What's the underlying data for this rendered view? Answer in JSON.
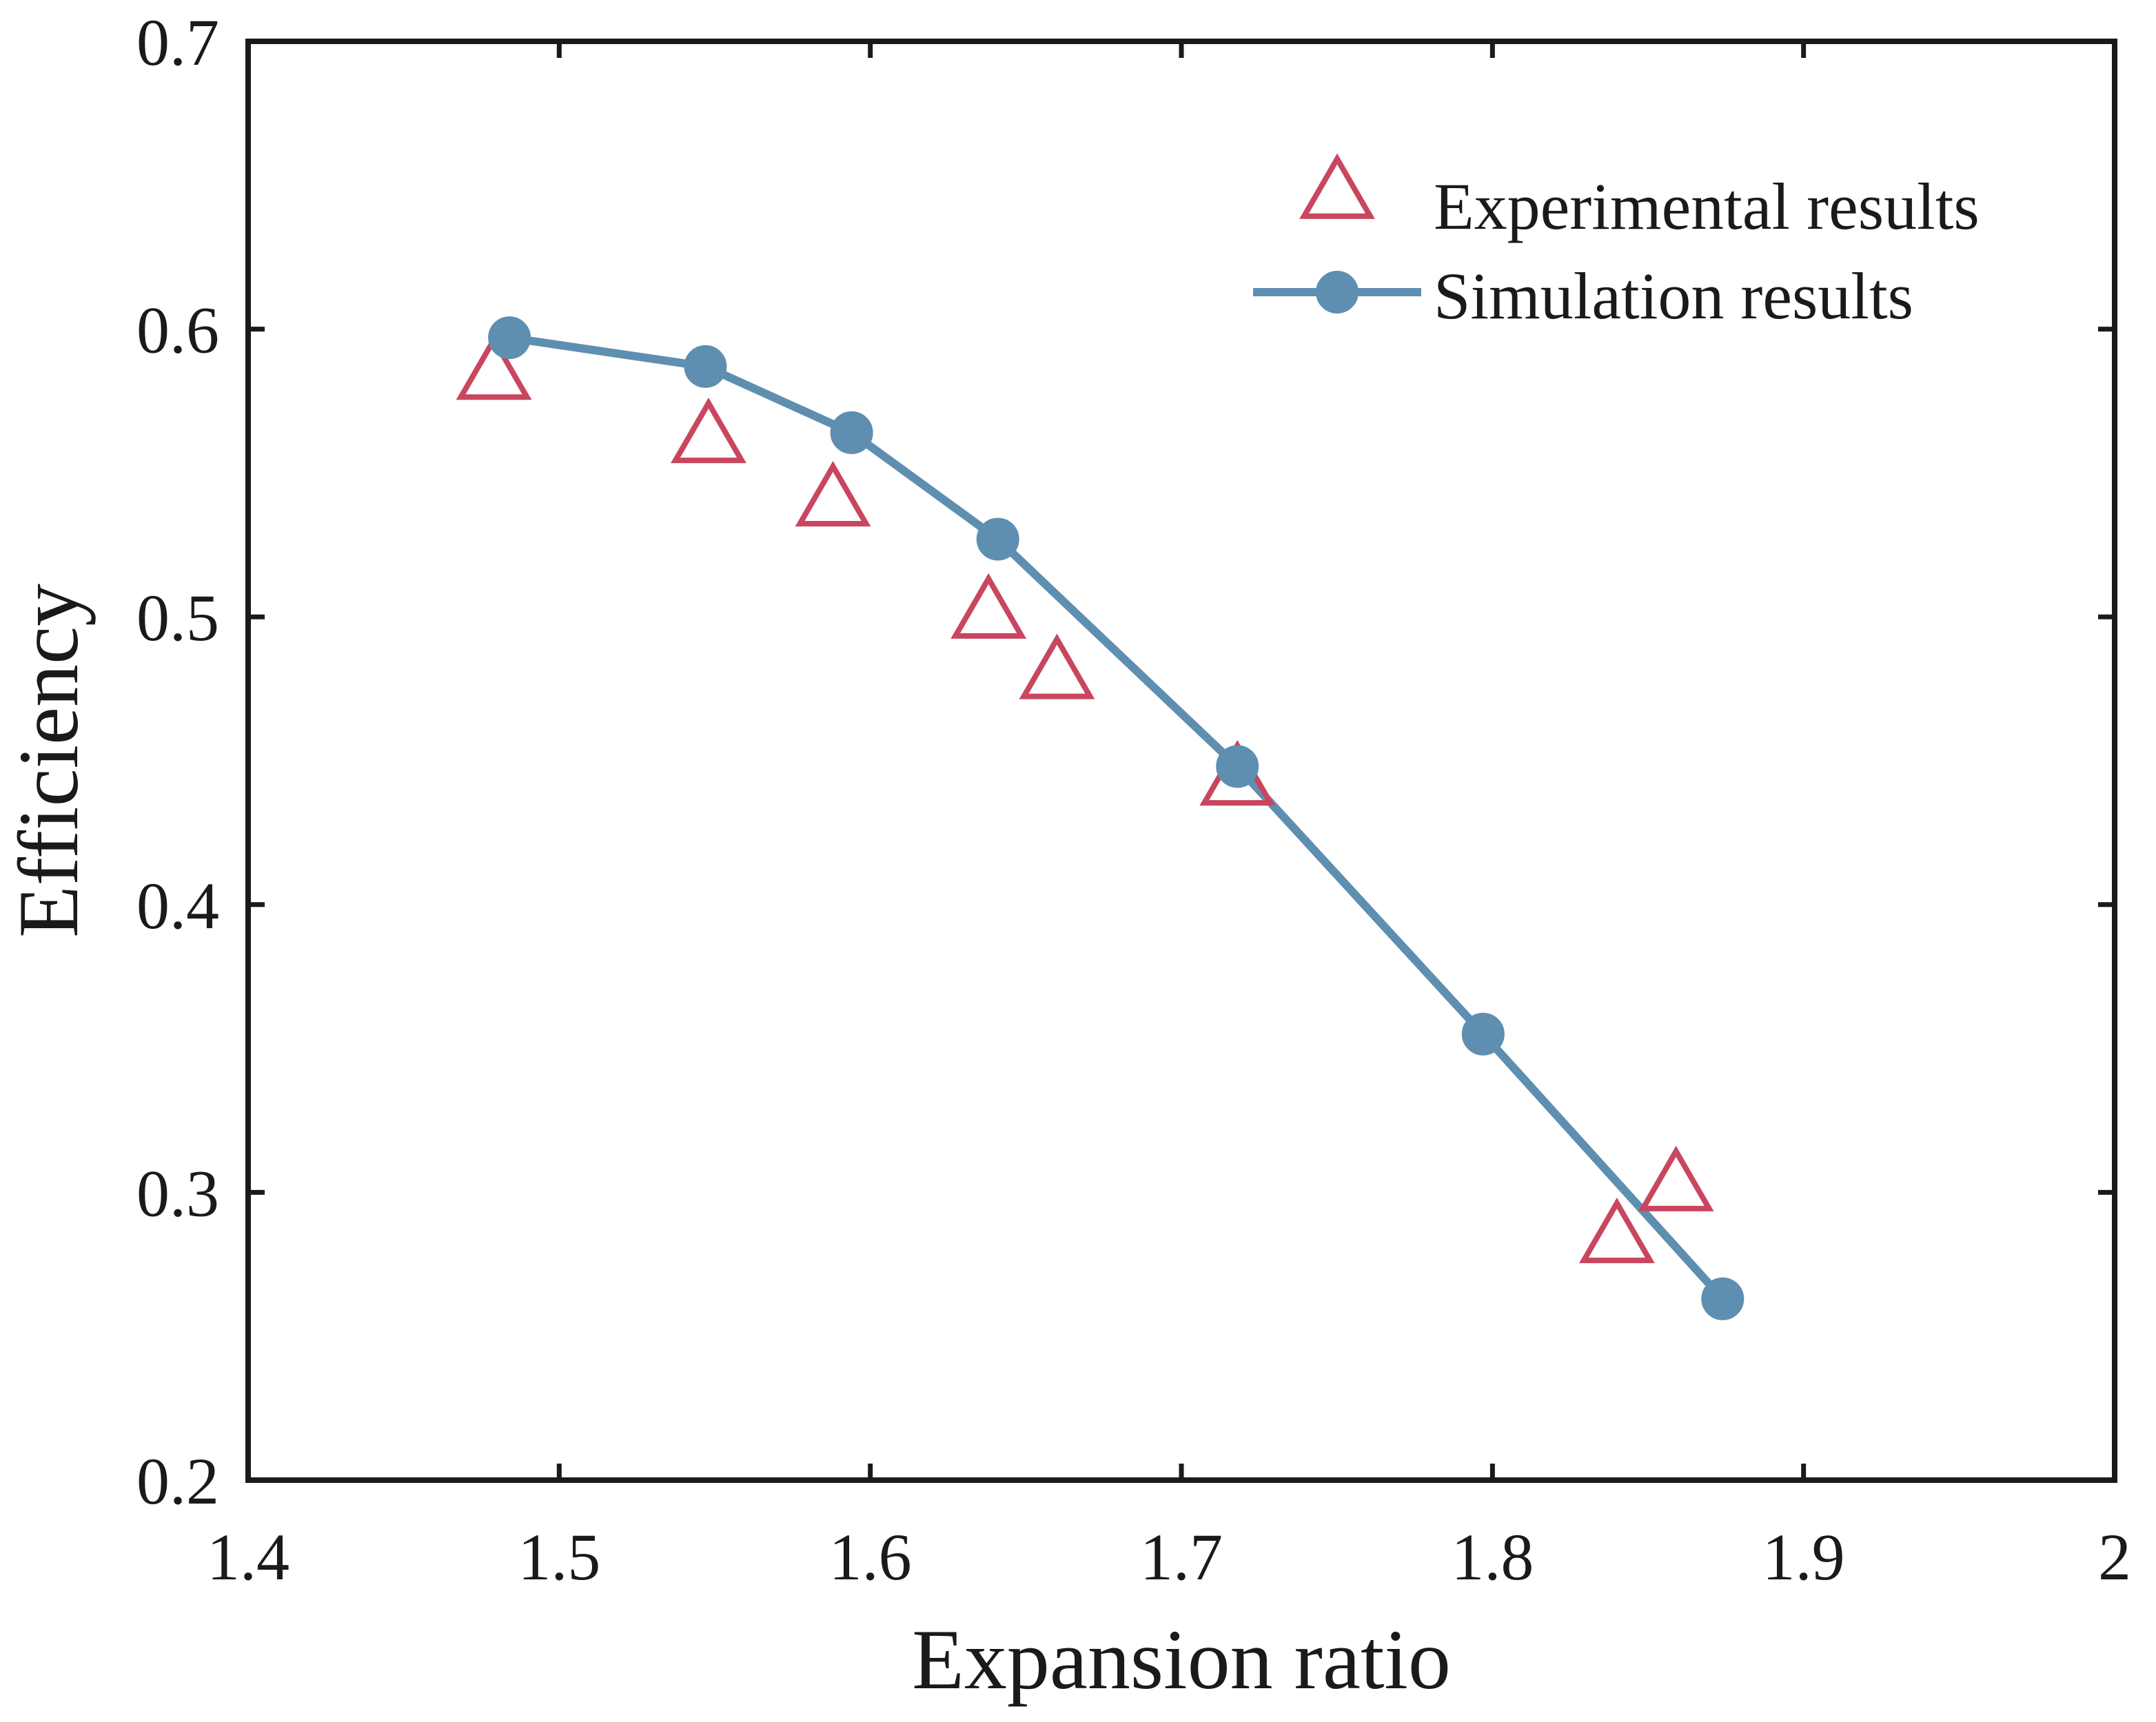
{
  "chart_data": {
    "type": "scatter",
    "title": "",
    "xlabel": "Expansion ratio",
    "ylabel": "Efficiency",
    "xlim": [
      1.4,
      2.0
    ],
    "ylim": [
      0.2,
      0.7
    ],
    "xticks": [
      1.4,
      1.5,
      1.6,
      1.7,
      1.8,
      1.9,
      2.0
    ],
    "xtick_labels": [
      "1.4",
      "1.5",
      "1.6",
      "1.7",
      "1.8",
      "1.9",
      "2"
    ],
    "yticks": [
      0.2,
      0.3,
      0.4,
      0.5,
      0.6,
      0.7
    ],
    "ytick_labels": [
      "0.2",
      "0.3",
      "0.4",
      "0.5",
      "0.6",
      "0.7"
    ],
    "grid": false,
    "legend_position": "top-right",
    "series": [
      {
        "name": "Experimental results",
        "kind": "markers",
        "marker": "triangle-open",
        "color": "#c8465f",
        "x": [
          1.479,
          1.548,
          1.588,
          1.638,
          1.66,
          1.718,
          1.84,
          1.859
        ],
        "y": [
          0.583,
          0.561,
          0.539,
          0.5,
          0.479,
          0.442,
          0.283,
          0.301
        ]
      },
      {
        "name": "Simulation results",
        "kind": "line-markers",
        "marker": "circle-filled",
        "color": "#5f8fb0",
        "x": [
          1.484,
          1.547,
          1.594,
          1.641,
          1.718,
          1.797,
          1.874
        ],
        "y": [
          0.597,
          0.587,
          0.564,
          0.527,
          0.448,
          0.355,
          0.263
        ]
      }
    ]
  }
}
